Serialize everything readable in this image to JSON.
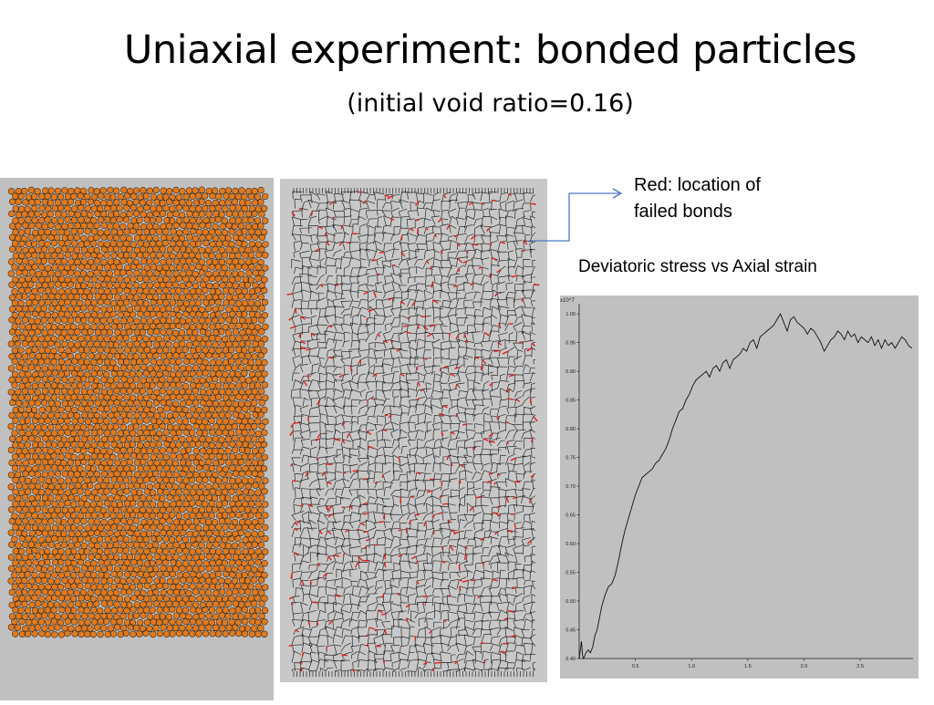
{
  "slide": {
    "title": "Uniaxial experiment: bonded particles",
    "subtitle": "(initial void ratio=0.16)"
  },
  "callout": {
    "line1": "Red: location of",
    "line2": "failed bonds"
  },
  "colors": {
    "particle_fill": "#e07a1f",
    "particle_edge": "#3a2a1a",
    "bond_line": "#2a2a2a",
    "failed_bond": "#e02020",
    "callout_arrow": "#4a7ac0",
    "panel_gray": "#c0c0c0"
  },
  "chart_data": {
    "type": "line",
    "title": "Deviatoric stress vs Axial strain",
    "multiplier_label": "x10^7",
    "xlabel": "",
    "ylabel": "",
    "xlim": [
      0.0,
      2.97
    ],
    "ylim": [
      0.4,
      1.005
    ],
    "x_ticks": [
      "0.5",
      "1.0",
      "1.5",
      "2.0",
      "2.5"
    ],
    "y_ticks": [
      "0.40",
      "0.45",
      "0.50",
      "0.55",
      "0.60",
      "0.65",
      "0.70",
      "0.75",
      "0.80",
      "0.85",
      "0.90",
      "0.95",
      "1.00"
    ],
    "grid": false,
    "series": [
      {
        "x": [
          0.0,
          0.02,
          0.03,
          0.04,
          0.06,
          0.08,
          0.1,
          0.12,
          0.14,
          0.16,
          0.18,
          0.2,
          0.23,
          0.26,
          0.29,
          0.32,
          0.35,
          0.38,
          0.41,
          0.44,
          0.47,
          0.5,
          0.53,
          0.56,
          0.59,
          0.62,
          0.65,
          0.68,
          0.71,
          0.74,
          0.77,
          0.8,
          0.83,
          0.86,
          0.89,
          0.92,
          0.95,
          0.98,
          1.01,
          1.04,
          1.07,
          1.1,
          1.13,
          1.16,
          1.19,
          1.22,
          1.25,
          1.28,
          1.31,
          1.34,
          1.37,
          1.4,
          1.43,
          1.46,
          1.49,
          1.52,
          1.55,
          1.58,
          1.61,
          1.64,
          1.67,
          1.7,
          1.73,
          1.76,
          1.79,
          1.82,
          1.85,
          1.88,
          1.91,
          1.94,
          1.97,
          2.0,
          2.03,
          2.06,
          2.09,
          2.12,
          2.15,
          2.18,
          2.21,
          2.24,
          2.27,
          2.3,
          2.33,
          2.36,
          2.39,
          2.42,
          2.45,
          2.48,
          2.51,
          2.54,
          2.57,
          2.6,
          2.63,
          2.66,
          2.69,
          2.72,
          2.75,
          2.78,
          2.81,
          2.84,
          2.87,
          2.9,
          2.93,
          2.96
        ],
        "values": [
          0.4,
          0.43,
          0.405,
          0.4,
          0.41,
          0.415,
          0.41,
          0.42,
          0.44,
          0.45,
          0.47,
          0.49,
          0.51,
          0.525,
          0.53,
          0.545,
          0.57,
          0.6,
          0.625,
          0.645,
          0.665,
          0.685,
          0.7,
          0.715,
          0.72,
          0.725,
          0.73,
          0.74,
          0.745,
          0.755,
          0.765,
          0.78,
          0.8,
          0.815,
          0.83,
          0.835,
          0.85,
          0.86,
          0.875,
          0.885,
          0.89,
          0.895,
          0.9,
          0.89,
          0.905,
          0.91,
          0.9,
          0.915,
          0.92,
          0.905,
          0.92,
          0.925,
          0.93,
          0.94,
          0.935,
          0.95,
          0.955,
          0.94,
          0.96,
          0.965,
          0.97,
          0.975,
          0.98,
          0.99,
          1.0,
          0.985,
          0.97,
          0.99,
          0.995,
          0.985,
          0.98,
          0.975,
          0.965,
          0.975,
          0.97,
          0.96,
          0.95,
          0.935,
          0.945,
          0.955,
          0.96,
          0.97,
          0.965,
          0.955,
          0.97,
          0.96,
          0.965,
          0.95,
          0.96,
          0.955,
          0.95,
          0.96,
          0.945,
          0.955,
          0.94,
          0.955,
          0.945,
          0.95,
          0.94,
          0.95,
          0.96,
          0.955,
          0.945,
          0.94
        ]
      }
    ]
  }
}
